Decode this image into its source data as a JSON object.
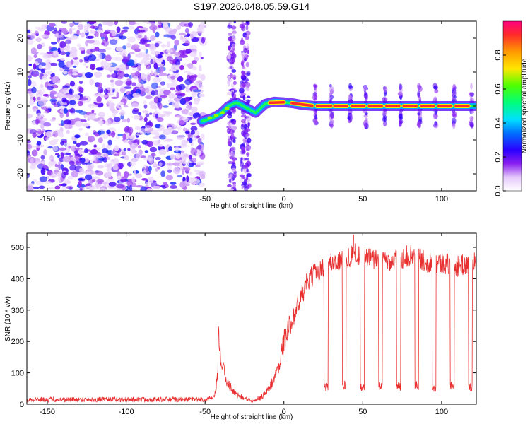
{
  "title": "S197.2026.048.05.59.G14",
  "chart_data": [
    {
      "type": "heatmap",
      "name": "spectrogram",
      "xlabel": "Height of straight line (km)",
      "ylabel": "Frequency (Hz)",
      "xlim": [
        -163,
        122
      ],
      "ylim": [
        -25,
        25
      ],
      "xticks": [
        -150,
        -100,
        -50,
        0,
        50,
        100
      ],
      "yticks": [
        -20,
        -10,
        0,
        10,
        20
      ],
      "colorbar": {
        "label": "Normalized spectral amplitude",
        "range": [
          0.0,
          1.0
        ],
        "ticks": [
          0.0,
          0.2,
          0.4,
          0.6,
          0.8
        ]
      },
      "noise_region": {
        "x_range": [
          -163,
          -51
        ],
        "amplitude": [
          0.05,
          0.3
        ]
      },
      "noise_streaks": [
        {
          "x_range": [
            -35,
            -31
          ],
          "y_range": [
            -25,
            25
          ],
          "amplitude": 0.12
        },
        {
          "x_range": [
            -27,
            -22
          ],
          "y_range": [
            -25,
            25
          ],
          "amplitude": 0.12
        }
      ],
      "ridge": {
        "points": [
          [
            -52,
            -4.5
          ],
          [
            -45,
            -3.5
          ],
          [
            -40,
            -2.2
          ],
          [
            -35,
            0
          ],
          [
            -30,
            1
          ],
          [
            -22,
            -1
          ],
          [
            -18,
            -2
          ],
          [
            -12,
            0.6
          ],
          [
            -6,
            1.3
          ],
          [
            0,
            1.1
          ],
          [
            6,
            0.8
          ],
          [
            12,
            0.3
          ],
          [
            20,
            0
          ],
          [
            122,
            0
          ]
        ],
        "amplitude": [
          0.5,
          1.0
        ]
      },
      "bright_segments_x": [
        [
          -9,
          0
        ],
        [
          5,
          18
        ],
        [
          21,
          30
        ],
        [
          32,
          40
        ],
        [
          43,
          51
        ],
        [
          54,
          62
        ],
        [
          65,
          73
        ],
        [
          76,
          84
        ],
        [
          87,
          95
        ],
        [
          98,
          106
        ],
        [
          109,
          117
        ]
      ],
      "periodic_bursts_x": [
        20,
        30,
        42,
        52,
        64,
        74,
        86,
        96,
        108,
        119
      ]
    },
    {
      "type": "line",
      "name": "snr",
      "xlabel": "Height of straight line (km)",
      "ylabel": "SNR (10 * v/v)",
      "xlim": [
        -163,
        122
      ],
      "ylim": [
        0,
        545
      ],
      "xticks": [
        -150,
        -100,
        -50,
        0,
        50,
        100
      ],
      "yticks": [
        0,
        100,
        200,
        300,
        400,
        500
      ],
      "series": [
        {
          "name": "SNR",
          "color": "#e83030",
          "envelope": {
            "x": [
              -163,
              -50,
              -44,
              -42,
              -41.5,
              -40,
              -36,
              -30,
              -24,
              -20,
              -15,
              -10,
              -8,
              -5,
              -2,
              0,
              5,
              10,
              15,
              20,
              25,
              30,
              35,
              40,
              45,
              50,
              60,
              70,
              80,
              90,
              100,
              110,
              122
            ],
            "y": [
              15,
              15,
              20,
              90,
              225,
              140,
              70,
              30,
              15,
              14,
              20,
              45,
              65,
              95,
              150,
              200,
              270,
              330,
              390,
              420,
              440,
              450,
              455,
              465,
              480,
              470,
              455,
              460,
              475,
              455,
              450,
              440,
              450
            ]
          },
          "dropouts": [
            {
              "x_range": [
                25.5,
                28
              ],
              "level": 55
            },
            {
              "x_range": [
                37,
                39.5
              ],
              "level": 60
            },
            {
              "x_range": [
                48.5,
                51
              ],
              "level": 55
            },
            {
              "x_range": [
                60,
                62.5
              ],
              "level": 60
            },
            {
              "x_range": [
                71.5,
                74
              ],
              "level": 55
            },
            {
              "x_range": [
                83,
                85.5
              ],
              "level": 60
            },
            {
              "x_range": [
                94,
                96.5
              ],
              "level": 55
            },
            {
              "x_range": [
                105.5,
                108
              ],
              "level": 60
            },
            {
              "x_range": [
                117,
                119.5
              ],
              "level": 55
            }
          ],
          "peak": {
            "x": 44,
            "y": 540
          }
        }
      ]
    }
  ]
}
